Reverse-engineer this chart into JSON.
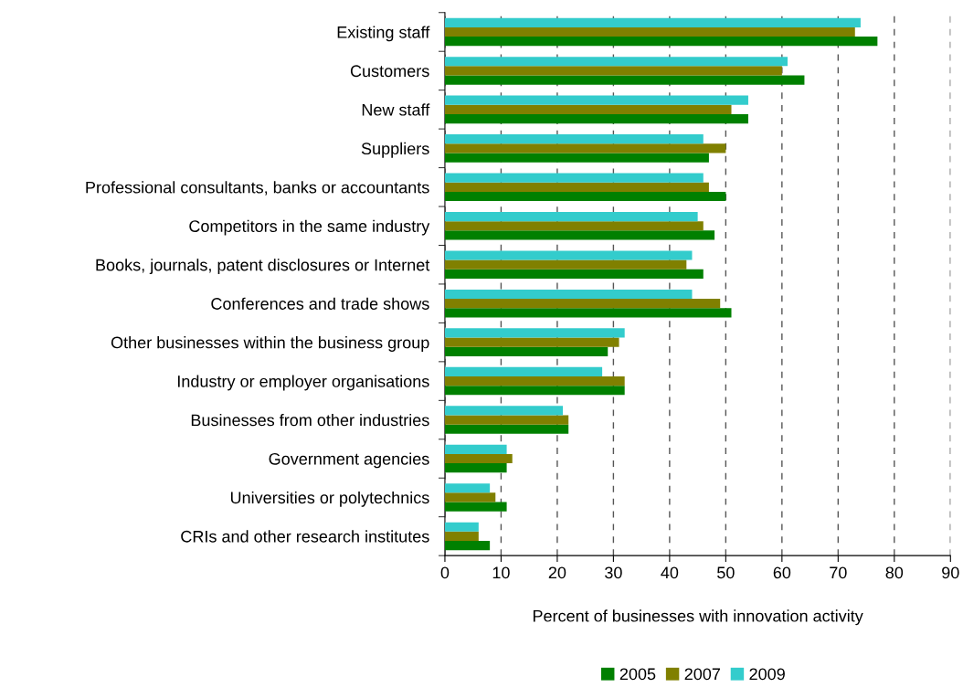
{
  "chart_data": {
    "type": "bar",
    "orientation": "horizontal",
    "xlabel": "Percent of businesses with innovation activity",
    "categories": [
      "Existing staff",
      "Customers",
      "New staff",
      "Suppliers",
      "Professional consultants, banks or accountants",
      "Competitors in the same industry",
      "Books, journals, patent disclosures or Internet",
      "Conferences and trade shows",
      "Other businesses within the business group",
      "Industry or employer organisations",
      "Businesses from other industries",
      "Government agencies",
      "Universities or polytechnics",
      "CRIs and other research institutes"
    ],
    "series": [
      {
        "name": "2005",
        "color": "#008000",
        "values": [
          77,
          64,
          54,
          47,
          50,
          48,
          46,
          51,
          29,
          32,
          22,
          11,
          11,
          8
        ]
      },
      {
        "name": "2007",
        "color": "#808000",
        "values": [
          73,
          60,
          51,
          50,
          47,
          46,
          43,
          49,
          31,
          32,
          22,
          12,
          9,
          6
        ]
      },
      {
        "name": "2009",
        "color": "#33cccc",
        "values": [
          74,
          61,
          54,
          46,
          46,
          45,
          44,
          44,
          32,
          28,
          21,
          11,
          8,
          6
        ]
      }
    ],
    "xlim": [
      0,
      90
    ],
    "xticks": [
      0,
      10,
      20,
      30,
      40,
      50,
      60,
      70,
      80,
      90
    ],
    "grid": "x",
    "legend": "bottom"
  }
}
